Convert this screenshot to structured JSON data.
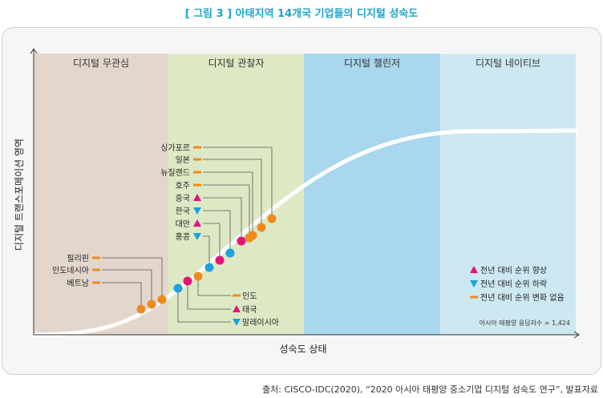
{
  "figure_title": "[ 그림 3 ] 아태지역 14개국 기업들의 디지털 성숙도",
  "source": "출처: CISCO-IDC(2020), “2020 아시아 태평양 중소기업 디지털 성숙도 연구”, 발표자료",
  "y_axis_label": "디지털 트랜스포메이션 영역",
  "x_axis_label": "성숙도 상태",
  "stages": [
    {
      "label": "디지털 무관심",
      "color": "#e3d7cd"
    },
    {
      "label": "디지털 관찰자",
      "color": "#dde9c4"
    },
    {
      "label": "디지털 챌린저",
      "color": "#a8d7ee"
    },
    {
      "label": "디지털 네이티브",
      "color": "#cde8f0"
    }
  ],
  "colors": {
    "up": "#e5137a",
    "down": "#1ba2df",
    "same": "#ef8a1e",
    "dot_blue": "#1ba2df",
    "dot_pink": "#e5137a",
    "dot_orange": "#ef8a1e"
  },
  "countries": [
    {
      "name": "베트남",
      "trend": "same",
      "dot": "orange"
    },
    {
      "name": "인도네시아",
      "trend": "same",
      "dot": "orange"
    },
    {
      "name": "필리핀",
      "trend": "same",
      "dot": "orange"
    },
    {
      "name": "말레이시아",
      "trend": "down",
      "dot": "blue"
    },
    {
      "name": "태국",
      "trend": "up",
      "dot": "pink"
    },
    {
      "name": "인도",
      "trend": "same",
      "dot": "orange"
    },
    {
      "name": "홍콩",
      "trend": "down",
      "dot": "blue"
    },
    {
      "name": "대만",
      "trend": "up",
      "dot": "pink"
    },
    {
      "name": "한국",
      "trend": "down",
      "dot": "blue"
    },
    {
      "name": "중국",
      "trend": "up",
      "dot": "pink"
    },
    {
      "name": "호주",
      "trend": "same",
      "dot": "orange"
    },
    {
      "name": "뉴질랜드",
      "trend": "same",
      "dot": "orange"
    },
    {
      "name": "일본",
      "trend": "same",
      "dot": "orange"
    },
    {
      "name": "싱가포르",
      "trend": "same",
      "dot": "orange"
    }
  ],
  "legend": [
    {
      "label": "전년 대비 순위 향상",
      "trend": "up"
    },
    {
      "label": "전년 대비 순위 하락",
      "trend": "down"
    },
    {
      "label": "전년 대비 순위 변화 없음",
      "trend": "same"
    }
  ],
  "respondents_note": "아시아 태평양 응답자수 = 1,424"
}
